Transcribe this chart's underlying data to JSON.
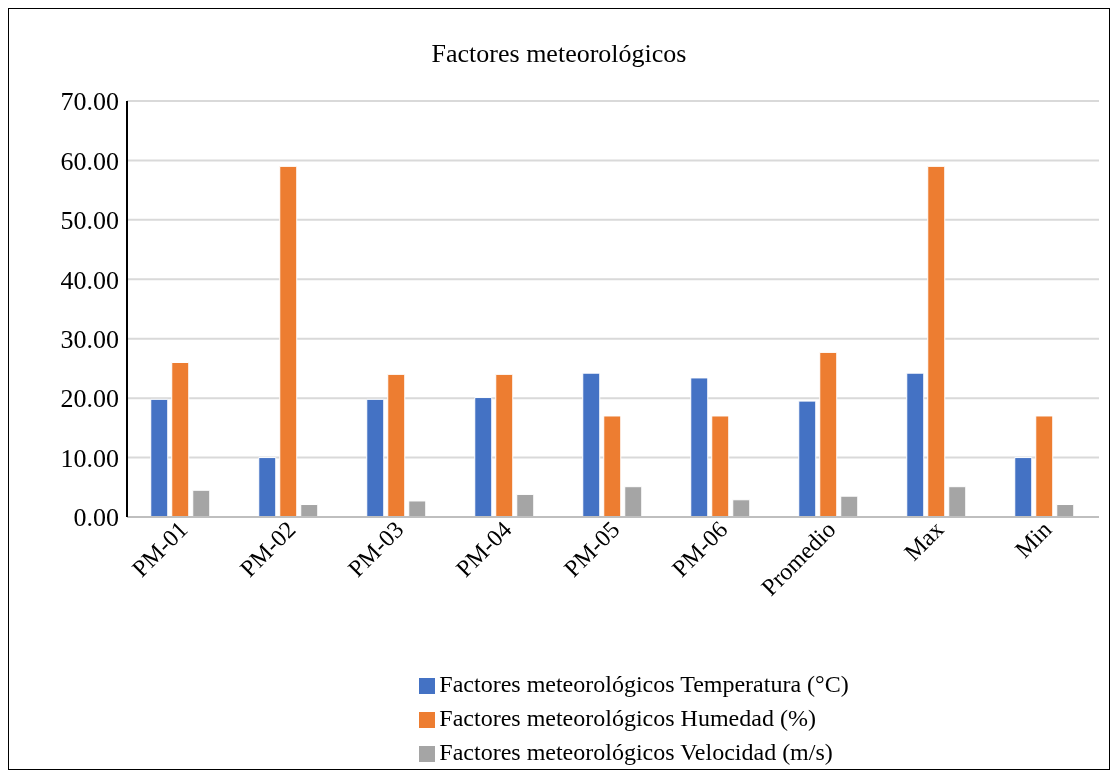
{
  "chart_data": {
    "type": "bar",
    "title": "Factores meteorológicos",
    "categories": [
      "PM-01",
      "PM-02",
      "PM-03",
      "PM-04",
      "PM-05",
      "PM-06",
      "Promedio",
      "Max",
      "Min"
    ],
    "series": [
      {
        "name": "Factores meteorológicos Temperatura (°C)",
        "color": "#4472c4",
        "values": [
          19.8,
          10.0,
          19.8,
          20.1,
          24.2,
          23.4,
          19.5,
          24.2,
          10.0
        ]
      },
      {
        "name": "Factores meteorológicos Humedad (%)",
        "color": "#ed7d31",
        "values": [
          26.0,
          59.0,
          24.0,
          24.0,
          17.0,
          17.0,
          27.7,
          59.0,
          17.0
        ]
      },
      {
        "name": "Factores meteorológicos Velocidad (m/s)",
        "color": "#a5a5a5",
        "values": [
          4.5,
          2.1,
          2.7,
          3.8,
          5.1,
          2.9,
          3.5,
          5.1,
          2.1
        ]
      }
    ],
    "ylim": [
      0,
      70
    ],
    "yticks": [
      {
        "value": 0,
        "label": "0.00"
      },
      {
        "value": 10,
        "label": "10.00"
      },
      {
        "value": 20,
        "label": "20.00"
      },
      {
        "value": 30,
        "label": "30.00"
      },
      {
        "value": 40,
        "label": "40.00"
      },
      {
        "value": 50,
        "label": "50.00"
      },
      {
        "value": 60,
        "label": "60.00"
      },
      {
        "value": 70,
        "label": "70.00"
      }
    ],
    "grid": "y",
    "legend": "bottom"
  }
}
